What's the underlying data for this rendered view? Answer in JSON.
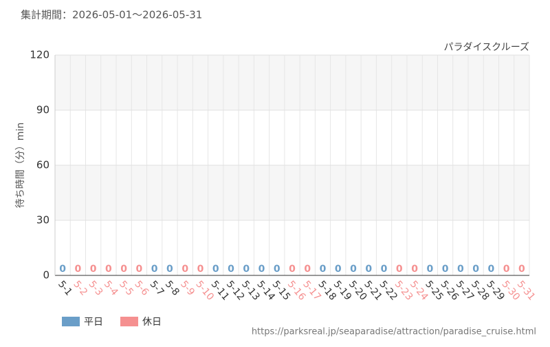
{
  "chart_data": {
    "type": "bar",
    "subtitle": "集計期間：2026-05-01〜2026-05-31",
    "title": "パラダイスクルーズ",
    "y_label": "待ち時間（分）min",
    "source": "https://parksreal.jp/seaparadise/attraction/paradise_cruise.html",
    "categories": [
      "5-1",
      "5-2",
      "5-3",
      "5-4",
      "5-5",
      "5-6",
      "5-7",
      "5-8",
      "5-9",
      "5-10",
      "5-11",
      "5-12",
      "5-13",
      "5-14",
      "5-15",
      "5-16",
      "5-17",
      "5-18",
      "5-19",
      "5-20",
      "5-21",
      "5-22",
      "5-23",
      "5-24",
      "5-25",
      "5-26",
      "5-27",
      "5-28",
      "5-29",
      "5-30",
      "5-31"
    ],
    "series": [
      {
        "name": "平日",
        "color": "#6a9ec8",
        "values": [
          0,
          null,
          null,
          null,
          null,
          null,
          0,
          0,
          null,
          null,
          0,
          0,
          0,
          0,
          0,
          null,
          null,
          0,
          0,
          0,
          0,
          0,
          null,
          null,
          0,
          0,
          0,
          0,
          0,
          null,
          null
        ]
      },
      {
        "name": "休日",
        "color": "#f59090",
        "values": [
          null,
          0,
          0,
          0,
          0,
          0,
          null,
          null,
          0,
          0,
          null,
          null,
          null,
          null,
          null,
          0,
          0,
          null,
          null,
          null,
          null,
          null,
          0,
          0,
          null,
          null,
          null,
          null,
          null,
          0,
          0
        ]
      }
    ],
    "ylim": [
      0,
      120
    ],
    "yticks": [
      0,
      30,
      60,
      90,
      120
    ],
    "grid": true
  }
}
